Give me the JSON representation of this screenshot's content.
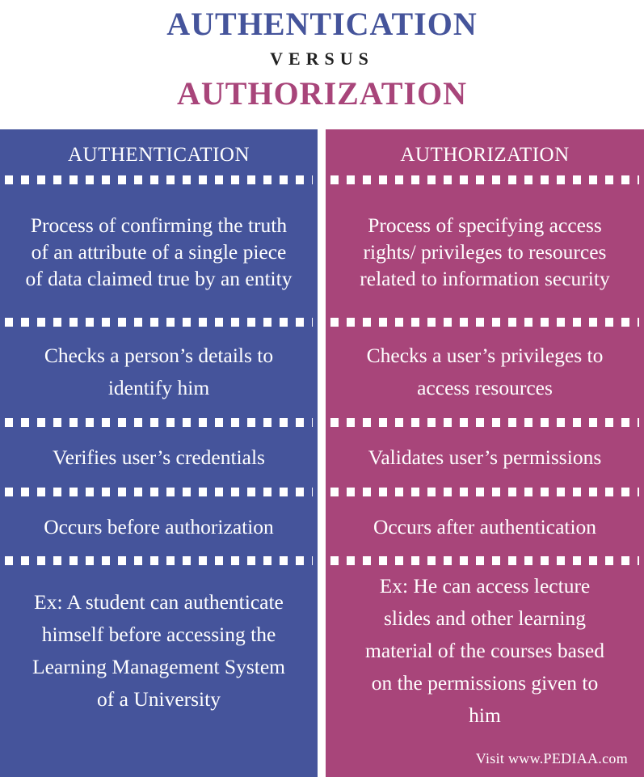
{
  "header": {
    "title_a": "AUTHENTICATION",
    "versus": "VERSUS",
    "title_b": "AUTHORIZATION"
  },
  "columns": {
    "left": {
      "heading": "AUTHENTICATION",
      "color": "#45549b",
      "rows": [
        "Process of confirming the truth of an attribute of a single piece of data claimed true by an entity",
        "Checks a person’s details to identify him",
        "Verifies user’s credentials",
        "Occurs before authorization",
        "Ex: A student can authenticate himself before accessing the Learning Management System of a University"
      ]
    },
    "right": {
      "heading": "AUTHORIZATION",
      "color": "#a8457a",
      "rows": [
        "Process of specifying access rights/ privileges to resources related to information security",
        "Checks a user’s privileges to access resources",
        "Validates user’s permissions",
        "Occurs after authentication",
        "Ex: He can access lecture slides and other learning material of the courses based on the permissions given to him"
      ]
    }
  },
  "footer": {
    "credit": "Visit www.PEDIAA.com"
  }
}
